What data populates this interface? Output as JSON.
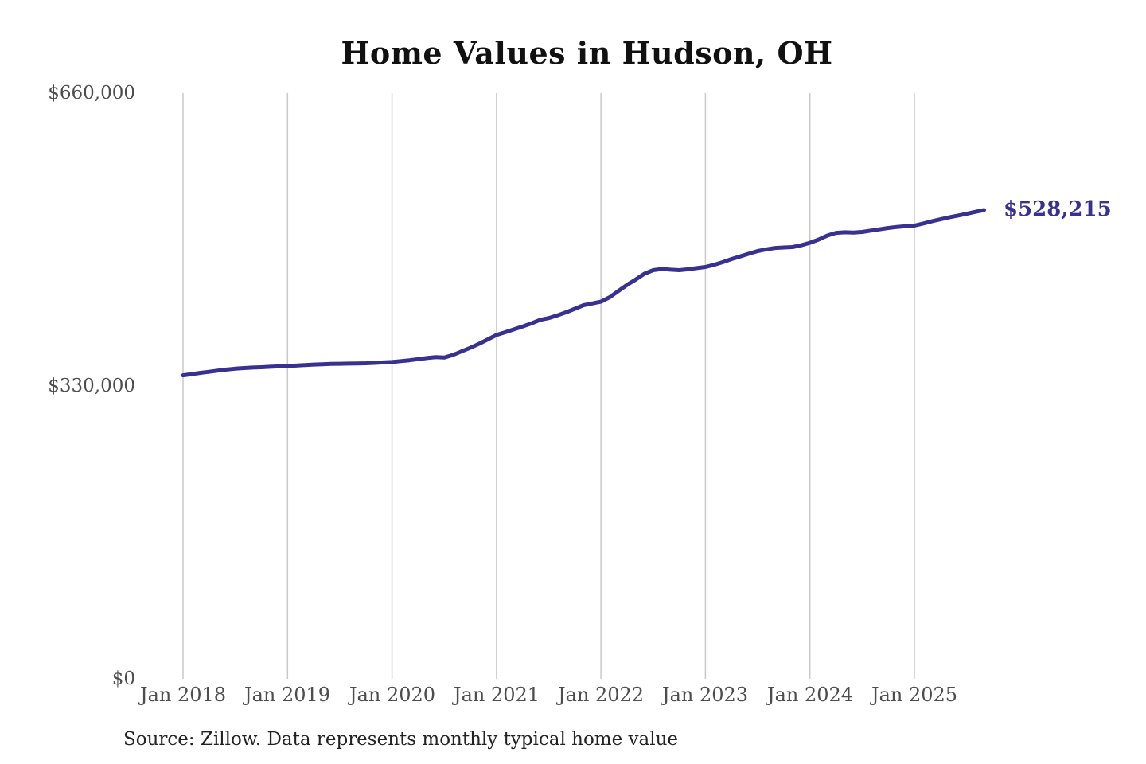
{
  "chart": {
    "title": "Home Values in Hudson, OH",
    "end_label": "$528,215",
    "source": "Source: Zillow. Data represents monthly typical home value",
    "colors": {
      "line": "#39318f",
      "annotation": "#39318f",
      "grid": "#c9c9c9",
      "axis_text": "#4d4d4d",
      "title_text": "#111111",
      "background": "#ffffff"
    }
  },
  "chart_data": {
    "type": "line",
    "title": "Home Values in Hudson, OH",
    "series_name": "Monthly typical home value",
    "source": "Source: Zillow. Data represents monthly typical home value",
    "end_annotation": "$528,215",
    "grid": "vertical-only",
    "legend": "none",
    "ylim": [
      0,
      660000
    ],
    "y_ticks": [
      0,
      330000,
      660000
    ],
    "y_tick_labels": [
      "$0",
      "$330,000",
      "$660,000"
    ],
    "x_tick_labels": [
      "Jan 2018",
      "Jan 2019",
      "Jan 2020",
      "Jan 2021",
      "Jan 2022",
      "Jan 2023",
      "Jan 2024",
      "Jan 2025"
    ],
    "x": [
      "2018-01",
      "2018-02",
      "2018-03",
      "2018-04",
      "2018-05",
      "2018-06",
      "2018-07",
      "2018-08",
      "2018-09",
      "2018-10",
      "2018-11",
      "2018-12",
      "2019-01",
      "2019-02",
      "2019-03",
      "2019-04",
      "2019-05",
      "2019-06",
      "2019-07",
      "2019-08",
      "2019-09",
      "2019-10",
      "2019-11",
      "2019-12",
      "2020-01",
      "2020-02",
      "2020-03",
      "2020-04",
      "2020-05",
      "2020-06",
      "2020-07",
      "2020-08",
      "2020-09",
      "2020-10",
      "2020-11",
      "2020-12",
      "2021-01",
      "2021-02",
      "2021-03",
      "2021-04",
      "2021-05",
      "2021-06",
      "2021-07",
      "2021-08",
      "2021-09",
      "2021-10",
      "2021-11",
      "2021-12",
      "2022-01",
      "2022-02",
      "2022-03",
      "2022-04",
      "2022-05",
      "2022-06",
      "2022-07",
      "2022-08",
      "2022-09",
      "2022-10",
      "2022-11",
      "2022-12",
      "2023-01",
      "2023-02",
      "2023-03",
      "2023-04",
      "2023-05",
      "2023-06",
      "2023-07",
      "2023-08",
      "2023-09",
      "2023-10",
      "2023-11",
      "2023-12",
      "2024-01",
      "2024-02",
      "2024-03",
      "2024-04",
      "2024-05",
      "2024-06",
      "2024-07",
      "2024-08",
      "2024-09",
      "2024-10",
      "2024-11",
      "2024-12",
      "2025-01",
      "2025-02",
      "2025-03",
      "2025-04",
      "2025-05",
      "2025-06",
      "2025-07",
      "2025-08",
      "2025-09"
    ],
    "values": [
      342000,
      343400,
      344800,
      346000,
      347300,
      348500,
      349500,
      350200,
      350700,
      351100,
      351600,
      352100,
      352500,
      353000,
      353600,
      354100,
      354500,
      354800,
      355000,
      355200,
      355400,
      355600,
      356000,
      356500,
      357000,
      358000,
      359000,
      360200,
      361500,
      362500,
      362000,
      365000,
      369000,
      373000,
      377500,
      382500,
      387500,
      390500,
      393800,
      397000,
      400500,
      404500,
      406500,
      409500,
      413000,
      417000,
      421000,
      423000,
      425000,
      430000,
      437000,
      444000,
      450000,
      456500,
      460500,
      461800,
      461000,
      460500,
      461500,
      462800,
      464100,
      466500,
      469500,
      473000,
      476000,
      479000,
      482000,
      484000,
      485500,
      486000,
      486500,
      488500,
      491300,
      495000,
      499500,
      502500,
      503200,
      502800,
      503500,
      505000,
      506500,
      508000,
      509200,
      510000,
      510700,
      513000,
      515500,
      517800,
      520000,
      522000,
      524000,
      526200,
      528215
    ]
  }
}
